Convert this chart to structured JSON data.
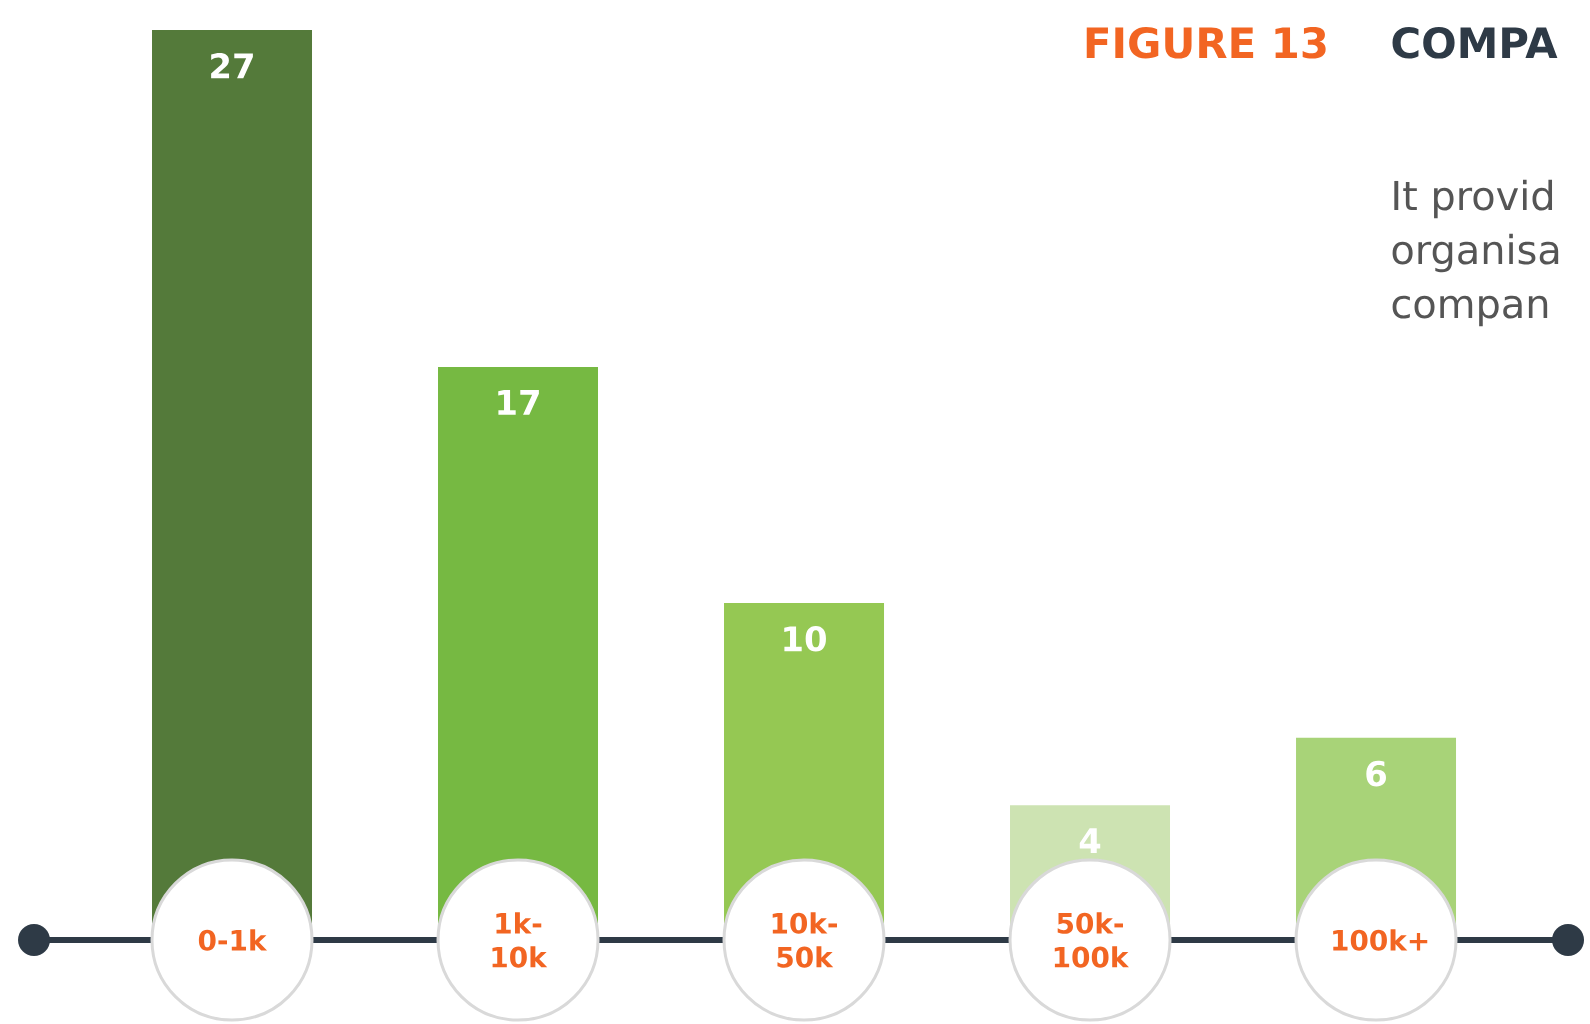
{
  "chart_data": {
    "type": "bar",
    "title": "FIGURE 13",
    "subtitle": "COMPA",
    "annotations": [
      "It provid",
      "organisa",
      "compan"
    ],
    "categories": [
      "0-1k",
      "1k-10k",
      "10k-50k",
      "50k-100k",
      "100k+"
    ],
    "values": [
      27,
      17,
      10,
      4,
      6
    ],
    "colors": [
      "#547a3a",
      "#76b942",
      "#95c853",
      "#cde3b2",
      "#a8d378"
    ],
    "data_labels": true
  }
}
